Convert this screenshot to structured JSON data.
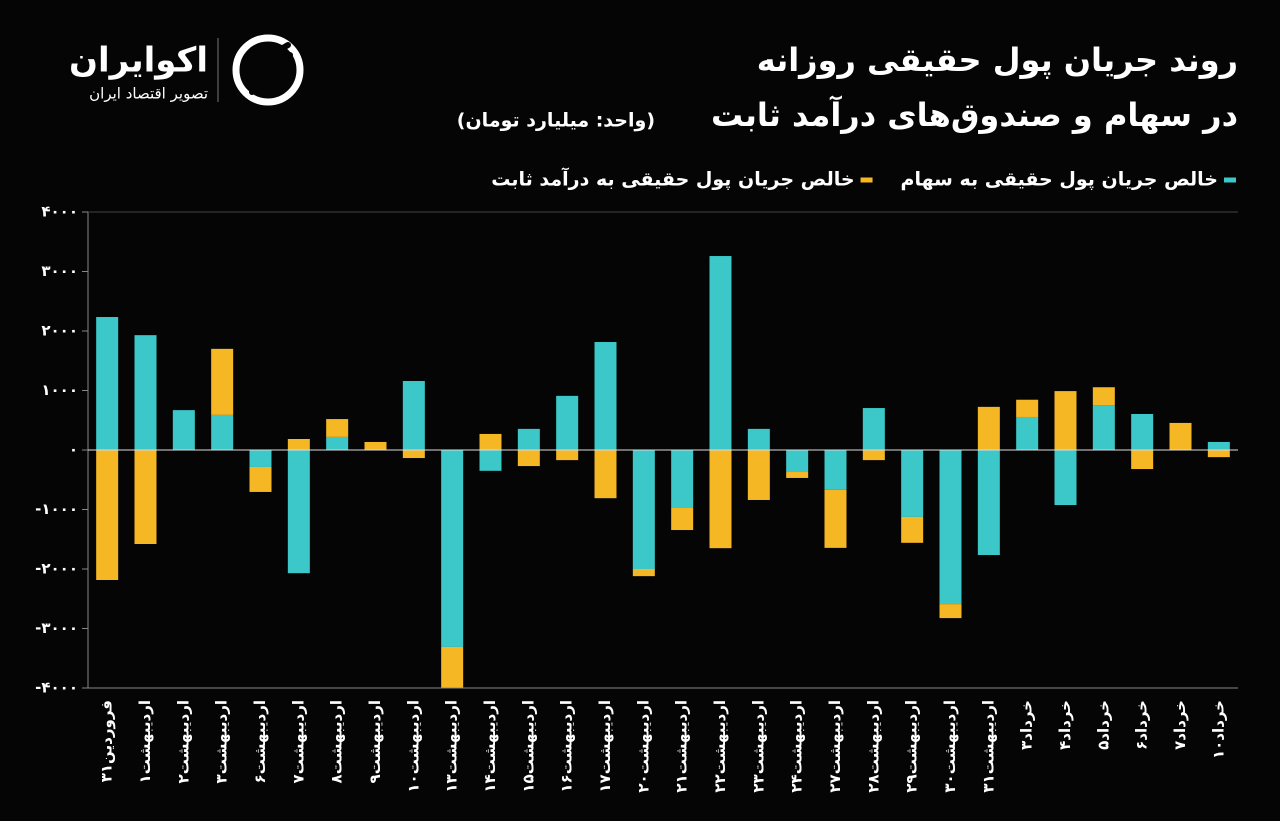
{
  "logo": {
    "name": "اکوایران",
    "tagline": "تصویر اقتصاد ایران"
  },
  "chart_data": {
    "type": "bar",
    "stacked": true,
    "title": "روند جریان پول حقیقی روزانه",
    "subtitle": "در سهام و صندوق‌های درآمد ثابت",
    "unit": "(واحد: میلیارد تومان)",
    "categories": [
      "۳۱فروردین",
      "۱اردیبهشت",
      "۲اردیبهشت",
      "۳اردیبهشت",
      "۶اردیبهشت",
      "۷اردیبهشت",
      "۸اردیبهشت",
      "۹اردیبهشت",
      "۱۰اردیبهشت",
      "۱۳اردیبهشت",
      "۱۴اردیبهشت",
      "۱۵اردیبهشت",
      "۱۶اردیبهشت",
      "۱۷اردیبهشت",
      "۲۰اردیبهشت",
      "۲۱اردیبهشت",
      "۲۲اردیبهشت",
      "۲۳اردیبهشت",
      "۲۴اردیبهشت",
      "۲۷اردیبهشت",
      "۲۸اردیبهشت",
      "۲۹اردیبهشت",
      "۳۰اردیبهشت",
      "۳۱اردیبهشت",
      "۳خرداد",
      "۴خرداد",
      "۵خرداد",
      "۶خرداد",
      "۷خرداد",
      "۱۰خرداد"
    ],
    "series": [
      {
        "name": "خالص جریان پول حقیقی به سهام",
        "color": "#3cc8c8",
        "values": [
          2235,
          1930,
          670,
          590,
          -285,
          -2070,
          220,
          0,
          1160,
          -3310,
          -350,
          355,
          910,
          1815,
          -2000,
          -975,
          3260,
          355,
          -370,
          -670,
          705,
          -1125,
          -2590,
          -1765,
          555,
          -925,
          755,
          605,
          0,
          135
        ]
      },
      {
        "name": "خالص جریان پول حقیقی به درآمد ثابت",
        "color": "#f5b724",
        "values": [
          -2185,
          -1580,
          0,
          1110,
          -420,
          185,
          300,
          135,
          -135,
          -690,
          270,
          -270,
          -170,
          -810,
          -120,
          -370,
          -1650,
          -840,
          -100,
          -975,
          -170,
          -435,
          -235,
          725,
          290,
          990,
          300,
          -320,
          455,
          -120
        ]
      }
    ],
    "ylim": [
      -4000,
      4000
    ],
    "yticks": [
      {
        "value": -4000,
        "label": "-۴۰۰۰"
      },
      {
        "value": -3000,
        "label": "-۳۰۰۰"
      },
      {
        "value": -2000,
        "label": "-۲۰۰۰"
      },
      {
        "value": -1000,
        "label": "-۱۰۰۰"
      },
      {
        "value": 0,
        "label": "۰"
      },
      {
        "value": 1000,
        "label": "۱۰۰۰"
      },
      {
        "value": 2000,
        "label": "۲۰۰۰"
      },
      {
        "value": 3000,
        "label": "۳۰۰۰"
      },
      {
        "value": 4000,
        "label": "۴۰۰۰"
      }
    ]
  }
}
